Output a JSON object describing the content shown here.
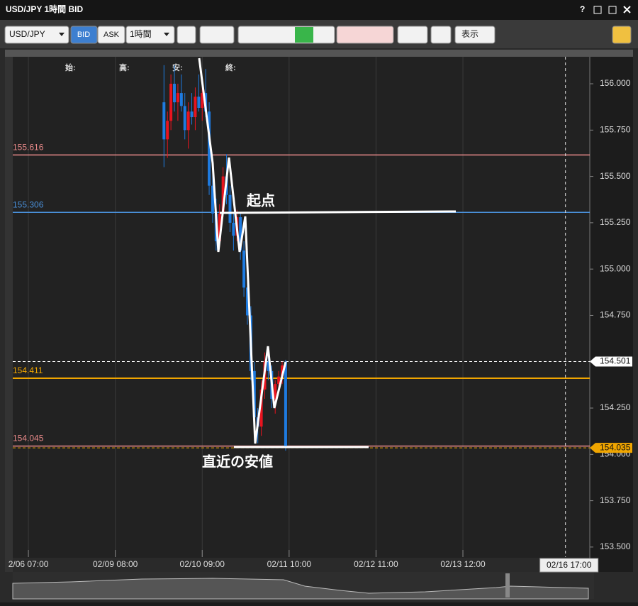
{
  "ui": {
    "window_title": "USD/JPY 1時間 BID",
    "help": "?",
    "symbol": "USD/JPY",
    "bid": "BID",
    "ask": "ASK",
    "timeframe": "1時間",
    "display": "表示"
  },
  "chart_data": {
    "type": "candlestick",
    "ohlc_labels": [
      "始:",
      "高:",
      "安:",
      "終:"
    ],
    "x": [
      39,
      40,
      41,
      42,
      43,
      44,
      45,
      46,
      47,
      48,
      49,
      50,
      51,
      52,
      53,
      54,
      55,
      56,
      57,
      58,
      59,
      60,
      61,
      62,
      63,
      64,
      65,
      66,
      67,
      68,
      69,
      70,
      71,
      72,
      73,
      74
    ],
    "open": [
      155.9,
      155.7,
      155.8,
      156.0,
      155.9,
      155.95,
      155.88,
      155.75,
      155.85,
      155.82,
      155.93,
      155.87,
      155.95,
      155.85,
      155.45,
      155.3,
      155.15,
      155.3,
      155.5,
      155.4,
      155.25,
      155.18,
      155.28,
      155.1,
      154.9,
      154.75,
      154.45,
      154.2,
      154.15,
      154.35,
      154.5,
      154.45,
      154.3,
      154.38,
      154.42,
      154.5
    ],
    "high": [
      156.1,
      155.85,
      156.05,
      156.1,
      156.0,
      156.05,
      155.95,
      155.9,
      155.95,
      155.98,
      156.05,
      156.0,
      156.08,
      155.9,
      155.55,
      155.38,
      155.35,
      155.55,
      155.62,
      155.45,
      155.3,
      155.32,
      155.3,
      155.15,
      154.95,
      154.8,
      154.5,
      154.25,
      154.4,
      154.55,
      154.58,
      154.48,
      154.4,
      154.45,
      154.5,
      154.51
    ],
    "low": [
      155.55,
      155.6,
      155.75,
      155.85,
      155.8,
      155.85,
      155.7,
      155.65,
      155.78,
      155.75,
      155.85,
      155.8,
      155.82,
      155.4,
      155.25,
      155.1,
      155.12,
      155.28,
      155.35,
      155.2,
      155.1,
      155.15,
      155.05,
      154.85,
      154.7,
      154.4,
      154.15,
      154.06,
      154.1,
      154.3,
      154.4,
      154.25,
      154.22,
      154.33,
      154.38,
      154.02
    ],
    "close": [
      155.7,
      155.8,
      156.0,
      155.9,
      155.95,
      155.88,
      155.75,
      155.85,
      155.82,
      155.93,
      155.87,
      155.95,
      155.85,
      155.45,
      155.3,
      155.15,
      155.3,
      155.5,
      155.4,
      155.25,
      155.18,
      155.28,
      155.1,
      154.9,
      154.75,
      154.45,
      154.2,
      154.15,
      154.35,
      154.5,
      154.45,
      154.3,
      154.38,
      154.42,
      154.48,
      154.035
    ],
    "up_color": "#e8141f",
    "down_color": "#1e7be0",
    "xlim": [
      -4.5,
      161.5
    ],
    "xticks": [
      {
        "value": 0,
        "label": "2/06 07:00"
      },
      {
        "value": 25,
        "label": "02/09 08:00"
      },
      {
        "value": 50,
        "label": "02/10 09:00"
      },
      {
        "value": 75,
        "label": "02/11 10:00"
      },
      {
        "value": 100,
        "label": "02/12 11:00"
      },
      {
        "value": 125,
        "label": "02/13 12:00"
      }
    ],
    "crosshair": {
      "value": 154.5,
      "label": "02/16 17:00"
    },
    "ylim": [
      153.446,
      156.138
    ],
    "yticks": [
      {
        "value": 156,
        "label": "156.000"
      },
      {
        "value": 155.75,
        "label": "155.750"
      },
      {
        "value": 155.5,
        "label": "155.500"
      },
      {
        "value": 155.25,
        "label": "155.250"
      },
      {
        "value": 155,
        "label": "155.000"
      },
      {
        "value": 154.75,
        "label": "154.750"
      },
      {
        "value": 154.5,
        "label": "154.500"
      },
      {
        "value": 154.25,
        "label": "154.250"
      },
      {
        "value": 154,
        "label": "154.000"
      },
      {
        "value": 153.75,
        "label": "153.750"
      },
      {
        "value": 153.5,
        "label": "153.500"
      }
    ],
    "xgrid": true,
    "price_lines": [
      {
        "value": 155.616,
        "color": "#e88a8a"
      },
      {
        "value": 155.306,
        "color": "#4a90d9"
      },
      {
        "value": 154.411,
        "color": "#f0a500"
      },
      {
        "value": 154.045,
        "color": "#e88a8a"
      }
    ],
    "current_prices": [
      {
        "value": 154.501,
        "color": "#ffffff"
      },
      {
        "value": 154.035,
        "color": "#f0a500"
      }
    ],
    "annotations": [
      "起点",
      "直近の安値"
    ]
  }
}
